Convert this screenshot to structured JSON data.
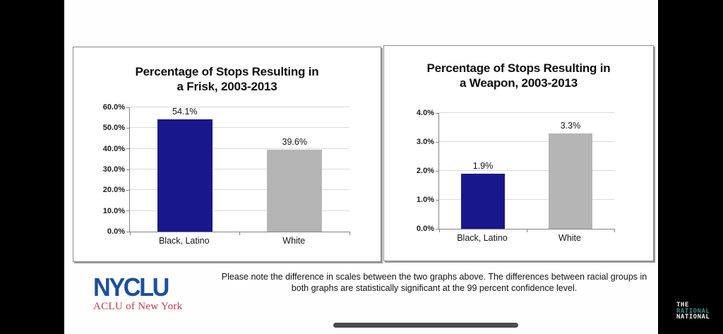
{
  "chart_data": [
    {
      "type": "bar",
      "title": "Percentage of Stops Resulting in a Frisk, 2003-2013",
      "title_lines": [
        "Percentage of Stops Resulting in",
        "a Frisk, 2003-2013"
      ],
      "categories": [
        "Black, Latino",
        "White"
      ],
      "values": [
        54.1,
        39.6
      ],
      "value_labels": [
        "54.1%",
        "39.6%"
      ],
      "bar_colors": [
        "#18188c",
        "#b4b4b4"
      ],
      "ylim": [
        0,
        60
      ],
      "yticks": [
        {
          "value": 0,
          "label": "0.0%"
        },
        {
          "value": 10,
          "label": "10.0%"
        },
        {
          "value": 20,
          "label": "20.0%"
        },
        {
          "value": 30,
          "label": "30.0%"
        },
        {
          "value": 40,
          "label": "40.0%"
        },
        {
          "value": 50,
          "label": "50.0%"
        },
        {
          "value": 60,
          "label": "60.0%"
        }
      ],
      "grid": true,
      "legend": false
    },
    {
      "type": "bar",
      "title": "Percentage of Stops Resulting in a Weapon, 2003-2013",
      "title_lines": [
        "Percentage of Stops Resulting in",
        "a Weapon, 2003-2013"
      ],
      "categories": [
        "Black, Latino",
        "White"
      ],
      "values": [
        1.9,
        3.3
      ],
      "value_labels": [
        "1.9%",
        "3.3%"
      ],
      "bar_colors": [
        "#18188c",
        "#b4b4b4"
      ],
      "ylim": [
        0,
        4
      ],
      "yticks": [
        {
          "value": 0,
          "label": "0.0%"
        },
        {
          "value": 1,
          "label": "1.0%"
        },
        {
          "value": 2,
          "label": "2.0%"
        },
        {
          "value": 3,
          "label": "3.0%"
        },
        {
          "value": 4,
          "label": "4.0%"
        }
      ],
      "grid": true,
      "legend": false
    }
  ],
  "footer": {
    "note_lines": [
      "Please note the difference in scales between the two graphs above. The differences between racial groups in",
      "both graphs are statistically significant at the 99 percent confidence level."
    ]
  },
  "branding": {
    "nyclu_wordmark": "NYCLU",
    "nyclu_tagline": "ACLU of New York",
    "nyclu_blue": "#1b4fa0",
    "nyclu_red": "#c0394b",
    "watermark_lines": [
      "THE",
      "RATIONAL",
      "NATIONAL"
    ],
    "watermark_accent": "#3d8b87"
  }
}
